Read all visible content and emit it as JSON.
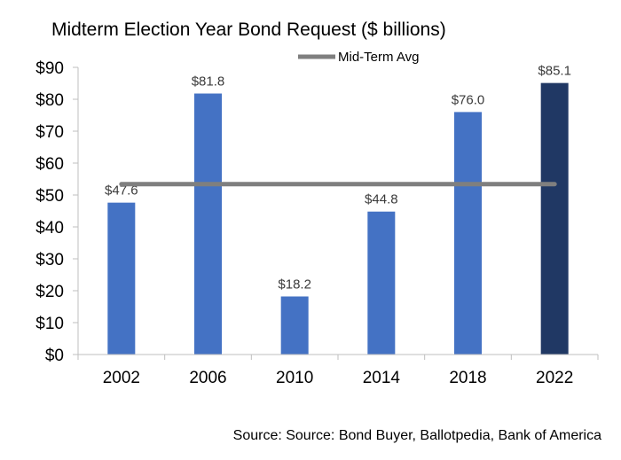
{
  "chart_data": {
    "type": "bar",
    "title": "Midterm Election Year Bond Request ($ billions)",
    "categories": [
      "2002",
      "2006",
      "2010",
      "2014",
      "2018",
      "2022"
    ],
    "values": [
      47.6,
      81.8,
      18.2,
      44.8,
      76.0,
      85.1
    ],
    "data_labels": [
      "$47.6",
      "$81.8",
      "$18.2",
      "$44.8",
      "$76.0",
      "$85.1"
    ],
    "ylim": [
      0,
      90
    ],
    "yticks": [
      0,
      10,
      20,
      30,
      40,
      50,
      60,
      70,
      80,
      90
    ],
    "ytick_labels": [
      "$0",
      "$10",
      "$20",
      "$30",
      "$40",
      "$50",
      "$60",
      "$70",
      "$80",
      "$90"
    ],
    "bar_color": "#4472c4",
    "highlight_color": "#203864",
    "highlight_category": "2022",
    "average_line": {
      "name": "Mid-Term Avg",
      "value": 53.4,
      "color": "#7f7f7f"
    },
    "legend_position": "top",
    "grid": false,
    "xlabel": "",
    "ylabel": ""
  },
  "source_note": "Source: Source: Bond Buyer, Ballotpedia, Bank of America"
}
